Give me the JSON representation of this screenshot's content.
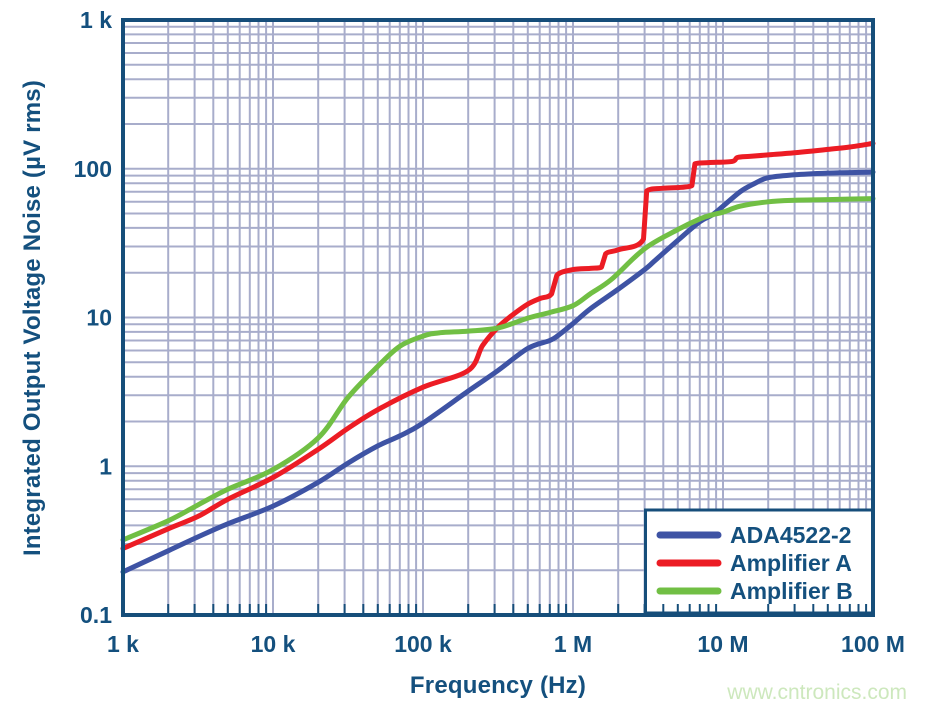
{
  "watermark": {
    "text": "www.cntronics.com",
    "color": "#cde8bd"
  },
  "colors": {
    "background": "#ffffff",
    "frame": "#164e7a",
    "grid": "#a8adcb",
    "text": "#14507e",
    "legend_background": "#ffffff"
  },
  "chart_data": {
    "type": "line",
    "title": "",
    "xlabel": "Frequency (Hz)",
    "ylabel": "Integrated Output Voltage Noise (µV rms)",
    "x_scale": "log",
    "y_scale": "log",
    "xlim": [
      1000,
      100000000
    ],
    "ylim": [
      0.1,
      1000
    ],
    "grid": true,
    "x_ticks": [
      {
        "value": 1000,
        "label": "1 k"
      },
      {
        "value": 10000,
        "label": "10 k"
      },
      {
        "value": 100000,
        "label": "100 k"
      },
      {
        "value": 1000000,
        "label": "1 M"
      },
      {
        "value": 10000000,
        "label": "10 M"
      },
      {
        "value": 100000000,
        "label": "100 M"
      }
    ],
    "y_ticks": [
      {
        "value": 1000,
        "label": "1 k"
      },
      {
        "value": 100,
        "label": "100"
      },
      {
        "value": 10,
        "label": "10"
      },
      {
        "value": 1,
        "label": "1"
      },
      {
        "value": 0.1,
        "label": "0.1"
      }
    ],
    "legend": {
      "position": "bottom-right",
      "entries": [
        {
          "name": "ADA4522-2",
          "color": "#3e53a4"
        },
        {
          "name": "Amplifier A",
          "color": "#ec1c24"
        },
        {
          "name": "Amplifier B",
          "color": "#71bf44"
        }
      ]
    },
    "series": [
      {
        "name": "ADA4522-2",
        "color": "#3e53a4",
        "points": [
          [
            1000,
            0.195
          ],
          [
            2000,
            0.27
          ],
          [
            3160,
            0.335
          ],
          [
            5000,
            0.41
          ],
          [
            10000,
            0.54
          ],
          [
            20000,
            0.78
          ],
          [
            31600,
            1.05
          ],
          [
            50000,
            1.37
          ],
          [
            70000,
            1.6
          ],
          [
            100000,
            1.95
          ],
          [
            200000,
            3.2
          ],
          [
            316000,
            4.4
          ],
          [
            500000,
            6.2
          ],
          [
            700000,
            7.0
          ],
          [
            800000,
            7.6
          ],
          [
            1000000,
            9.1
          ],
          [
            1300000,
            11.4
          ],
          [
            2000000,
            15.5
          ],
          [
            3000000,
            21
          ],
          [
            3500000,
            24
          ],
          [
            5000000,
            33
          ],
          [
            7000000,
            44
          ],
          [
            8500000,
            49
          ],
          [
            10000000,
            56
          ],
          [
            13000000,
            70
          ],
          [
            16000000,
            79
          ],
          [
            20000000,
            87
          ],
          [
            30000000,
            91
          ],
          [
            50000000,
            93.5
          ],
          [
            100000000,
            95
          ]
        ]
      },
      {
        "name": "Amplifier A",
        "color": "#ec1c24",
        "points": [
          [
            1000,
            0.28
          ],
          [
            2000,
            0.38
          ],
          [
            3160,
            0.46
          ],
          [
            5000,
            0.6
          ],
          [
            10000,
            0.84
          ],
          [
            20000,
            1.3
          ],
          [
            31600,
            1.8
          ],
          [
            50000,
            2.4
          ],
          [
            100000,
            3.4
          ],
          [
            200000,
            4.4
          ],
          [
            250000,
            6.5
          ],
          [
            316000,
            8.6
          ],
          [
            400000,
            10.5
          ],
          [
            500000,
            12.3
          ],
          [
            600000,
            13.4
          ],
          [
            720000,
            14.4
          ],
          [
            780000,
            19.2
          ],
          [
            1000000,
            21
          ],
          [
            1300000,
            21.4
          ],
          [
            1550000,
            21.8
          ],
          [
            1650000,
            26.8
          ],
          [
            2000000,
            28.5
          ],
          [
            2950000,
            33.7
          ],
          [
            3100000,
            71
          ],
          [
            4000000,
            74
          ],
          [
            6200000,
            77
          ],
          [
            6500000,
            108
          ],
          [
            8000000,
            110
          ],
          [
            11500000,
            112
          ],
          [
            12500000,
            119
          ],
          [
            15000000,
            121
          ],
          [
            20000000,
            124
          ],
          [
            30000000,
            128
          ],
          [
            50000000,
            135
          ],
          [
            70000000,
            140
          ],
          [
            100000000,
            148
          ]
        ]
      },
      {
        "name": "Amplifier B",
        "color": "#71bf44",
        "points": [
          [
            1000,
            0.32
          ],
          [
            2000,
            0.43
          ],
          [
            3160,
            0.55
          ],
          [
            5000,
            0.7
          ],
          [
            10000,
            0.95
          ],
          [
            20000,
            1.55
          ],
          [
            31600,
            2.9
          ],
          [
            50000,
            4.7
          ],
          [
            70000,
            6.4
          ],
          [
            100000,
            7.5
          ],
          [
            130000,
            7.9
          ],
          [
            200000,
            8.1
          ],
          [
            316000,
            8.5
          ],
          [
            500000,
            9.9
          ],
          [
            700000,
            10.8
          ],
          [
            1000000,
            12
          ],
          [
            1300000,
            14.4
          ],
          [
            1800000,
            18
          ],
          [
            3000000,
            29
          ],
          [
            5000000,
            39
          ],
          [
            7000000,
            46
          ],
          [
            8500000,
            49
          ],
          [
            10000000,
            51
          ],
          [
            13000000,
            56
          ],
          [
            20000000,
            60
          ],
          [
            30000000,
            61.5
          ],
          [
            50000000,
            62
          ],
          [
            100000000,
            63
          ]
        ]
      }
    ]
  }
}
